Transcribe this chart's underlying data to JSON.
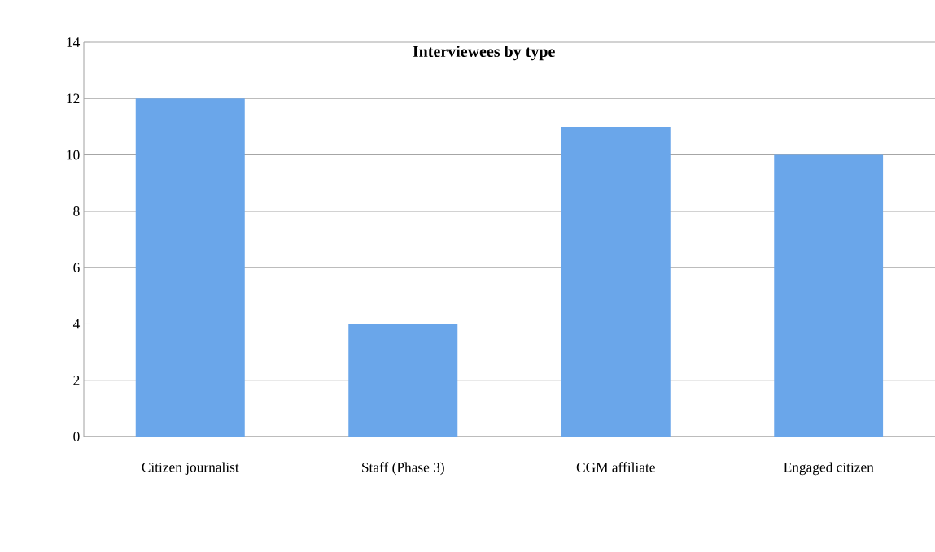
{
  "chart_data": {
    "type": "bar",
    "title": "Interviewees by type",
    "categories": [
      "Citizen journalist",
      "Staff (Phase 3)",
      "CGM affiliate",
      "Engaged citizen"
    ],
    "values": [
      12,
      4,
      11,
      10
    ],
    "color": "#6aa6ea",
    "ylim": [
      0,
      14
    ],
    "yticks": [
      0,
      2,
      4,
      6,
      8,
      10,
      12,
      14
    ],
    "grid": "y"
  }
}
